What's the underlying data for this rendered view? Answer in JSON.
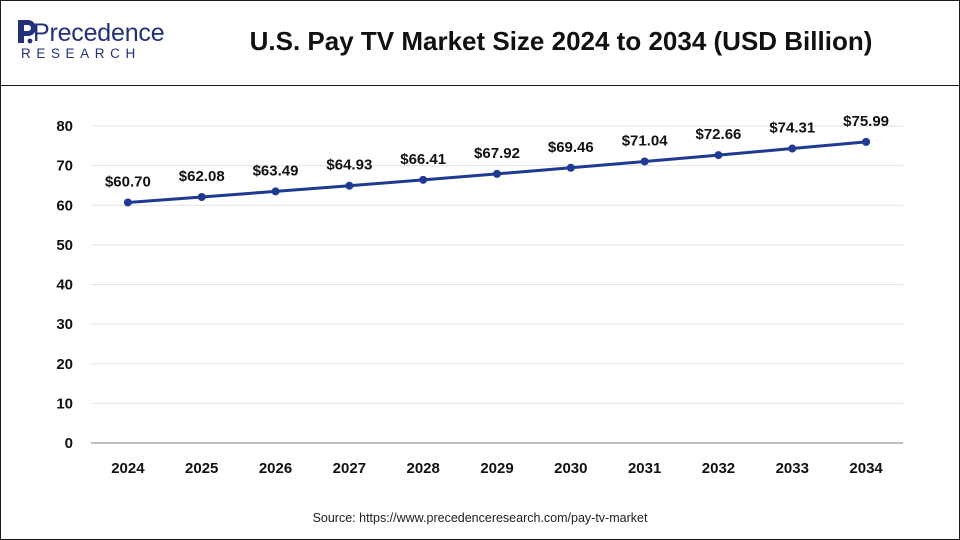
{
  "header": {
    "logo_text": "Precedence",
    "logo_subtext": "RESEARCH",
    "title": "U.S. Pay TV Market Size 2024 to 2034 (USD Billion)"
  },
  "source": "Source: https://www.precedenceresearch.com/pay-tv-market",
  "colors": {
    "line": "#1f3a93",
    "marker": "#1f3a93",
    "grid": "#e3e3e3",
    "axis": "#999999",
    "logo": "#23307a"
  },
  "chart_data": {
    "type": "line",
    "title": "U.S. Pay TV Market Size 2024 to 2034 (USD Billion)",
    "categories": [
      "2024",
      "2025",
      "2026",
      "2027",
      "2028",
      "2029",
      "2030",
      "2031",
      "2032",
      "2033",
      "2034"
    ],
    "series": [
      {
        "values": [
          60.7,
          62.08,
          63.49,
          64.93,
          66.41,
          67.92,
          69.46,
          71.04,
          72.66,
          74.31,
          75.99
        ],
        "labels": [
          "$60.70",
          "$62.08",
          "$63.49",
          "$64.93",
          "$66.41",
          "$67.92",
          "$69.46",
          "$71.04",
          "$72.66",
          "$74.31",
          "$75.99"
        ]
      }
    ],
    "ylim": [
      0,
      80
    ],
    "yticks": [
      0,
      10,
      20,
      30,
      40,
      50,
      60,
      70,
      80
    ],
    "grid": true,
    "legend": "none"
  }
}
